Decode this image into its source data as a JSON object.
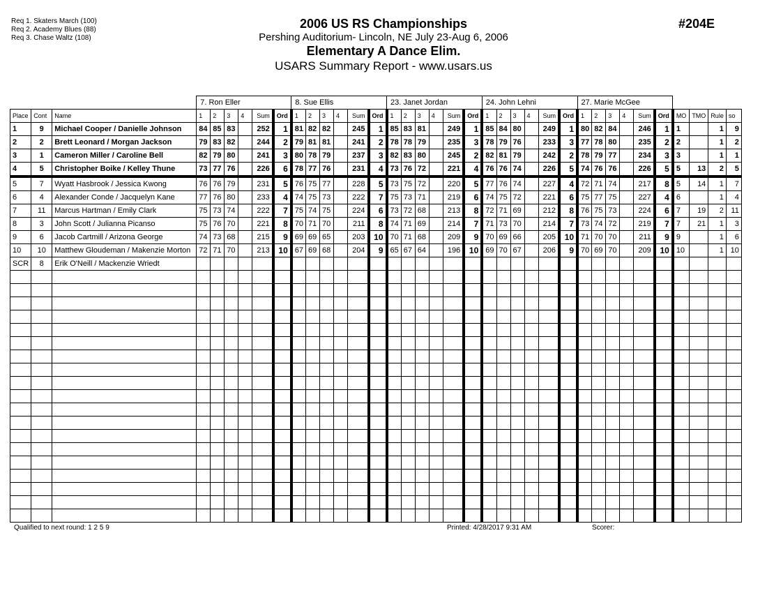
{
  "requirements": [
    "Req  1.  Skaters March (100)",
    "Req  2.  Academy Blues (88)",
    "Req  3.  Chase Waltz (108)"
  ],
  "header": {
    "title": "2006 US RS Championships",
    "venue": "Pershing Auditorium- Lincoln, NE  July 23-Aug 6, 2006",
    "event": "Elementary A Dance Elim.",
    "report": "USARS Summary Report - www.usars.us",
    "event_number": "#204E"
  },
  "judges": [
    "7.  Ron Eller",
    "8.  Sue Ellis",
    "23.  Janet Jordan",
    "24.  John Lehni",
    "27.  Marie McGee"
  ],
  "columns": {
    "place": "Place",
    "cont": "Cont",
    "name": "Name",
    "judge_cols": [
      "1",
      "2",
      "3",
      "4",
      "Sum",
      "Ord"
    ],
    "tail": [
      "MO",
      "TMO",
      "Rule",
      "so"
    ]
  },
  "rows": [
    {
      "place": "1",
      "cont": "9",
      "name": "Michael Cooper / Danielle Johnson",
      "bold": true,
      "scores": [
        [
          "84",
          "85",
          "83",
          "",
          "252",
          "1"
        ],
        [
          "81",
          "82",
          "82",
          "",
          "245",
          "1"
        ],
        [
          "85",
          "83",
          "81",
          "",
          "249",
          "1"
        ],
        [
          "85",
          "84",
          "80",
          "",
          "249",
          "1"
        ],
        [
          "80",
          "82",
          "84",
          "",
          "246",
          "1"
        ]
      ],
      "tail": [
        "1",
        "",
        "1",
        "9"
      ]
    },
    {
      "place": "2",
      "cont": "2",
      "name": "Brett Leonard / Morgan Jackson",
      "bold": true,
      "scores": [
        [
          "79",
          "83",
          "82",
          "",
          "244",
          "2"
        ],
        [
          "79",
          "81",
          "81",
          "",
          "241",
          "2"
        ],
        [
          "78",
          "78",
          "79",
          "",
          "235",
          "3"
        ],
        [
          "78",
          "79",
          "76",
          "",
          "233",
          "3"
        ],
        [
          "77",
          "78",
          "80",
          "",
          "235",
          "2"
        ]
      ],
      "tail": [
        "2",
        "",
        "1",
        "2"
      ]
    },
    {
      "place": "3",
      "cont": "1",
      "name": "Cameron Miller / Caroline Bell",
      "bold": true,
      "scores": [
        [
          "82",
          "79",
          "80",
          "",
          "241",
          "3"
        ],
        [
          "80",
          "78",
          "79",
          "",
          "237",
          "3"
        ],
        [
          "82",
          "83",
          "80",
          "",
          "245",
          "2"
        ],
        [
          "82",
          "81",
          "79",
          "",
          "242",
          "2"
        ],
        [
          "78",
          "79",
          "77",
          "",
          "234",
          "3"
        ]
      ],
      "tail": [
        "3",
        "",
        "1",
        "1"
      ]
    },
    {
      "place": "4",
      "cont": "5",
      "name": "Christopher Boike / Kelley Thune",
      "bold": true,
      "scores": [
        [
          "73",
          "77",
          "76",
          "",
          "226",
          "6"
        ],
        [
          "78",
          "77",
          "76",
          "",
          "231",
          "4"
        ],
        [
          "73",
          "76",
          "72",
          "",
          "221",
          "4"
        ],
        [
          "76",
          "76",
          "74",
          "",
          "226",
          "5"
        ],
        [
          "74",
          "76",
          "76",
          "",
          "226",
          "5"
        ]
      ],
      "tail": [
        "5",
        "13",
        "2",
        "5"
      ]
    },
    {
      "place": "5",
      "cont": "7",
      "name": "Wyatt Hasbrook / Jessica Kwong",
      "scores": [
        [
          "76",
          "76",
          "79",
          "",
          "231",
          "5"
        ],
        [
          "76",
          "75",
          "77",
          "",
          "228",
          "5"
        ],
        [
          "73",
          "75",
          "72",
          "",
          "220",
          "5"
        ],
        [
          "77",
          "76",
          "74",
          "",
          "227",
          "4"
        ],
        [
          "72",
          "71",
          "74",
          "",
          "217",
          "8"
        ]
      ],
      "tail": [
        "5",
        "14",
        "1",
        "7"
      ]
    },
    {
      "place": "6",
      "cont": "4",
      "name": "Alexander Conde / Jacquelyn Kane",
      "scores": [
        [
          "77",
          "76",
          "80",
          "",
          "233",
          "4"
        ],
        [
          "74",
          "75",
          "73",
          "",
          "222",
          "7"
        ],
        [
          "75",
          "73",
          "71",
          "",
          "219",
          "6"
        ],
        [
          "74",
          "75",
          "72",
          "",
          "221",
          "6"
        ],
        [
          "75",
          "77",
          "75",
          "",
          "227",
          "4"
        ]
      ],
      "tail": [
        "6",
        "",
        "1",
        "4"
      ]
    },
    {
      "place": "7",
      "cont": "11",
      "name": "Marcus Hartman / Emily Clark",
      "scores": [
        [
          "75",
          "73",
          "74",
          "",
          "222",
          "7"
        ],
        [
          "75",
          "74",
          "75",
          "",
          "224",
          "6"
        ],
        [
          "73",
          "72",
          "68",
          "",
          "213",
          "8"
        ],
        [
          "72",
          "71",
          "69",
          "",
          "212",
          "8"
        ],
        [
          "76",
          "75",
          "73",
          "",
          "224",
          "6"
        ]
      ],
      "tail": [
        "7",
        "19",
        "2",
        "11"
      ]
    },
    {
      "place": "8",
      "cont": "3",
      "name": "John Scott / Julianna Picanso",
      "scores": [
        [
          "75",
          "76",
          "70",
          "",
          "221",
          "8"
        ],
        [
          "70",
          "71",
          "70",
          "",
          "211",
          "8"
        ],
        [
          "74",
          "71",
          "69",
          "",
          "214",
          "7"
        ],
        [
          "71",
          "73",
          "70",
          "",
          "214",
          "7"
        ],
        [
          "73",
          "74",
          "72",
          "",
          "219",
          "7"
        ]
      ],
      "tail": [
        "7",
        "21",
        "1",
        "3"
      ]
    },
    {
      "place": "9",
      "cont": "6",
      "name": "Jacob Cartmill / Arizona George",
      "scores": [
        [
          "74",
          "73",
          "68",
          "",
          "215",
          "9"
        ],
        [
          "69",
          "69",
          "65",
          "",
          "203",
          "10"
        ],
        [
          "70",
          "71",
          "68",
          "",
          "209",
          "9"
        ],
        [
          "70",
          "69",
          "66",
          "",
          "205",
          "10"
        ],
        [
          "71",
          "70",
          "70",
          "",
          "211",
          "9"
        ]
      ],
      "tail": [
        "9",
        "",
        "1",
        "6"
      ]
    },
    {
      "place": "10",
      "cont": "10",
      "name": "Matthew Gloudeman / Makenzie Morton",
      "scores": [
        [
          "72",
          "71",
          "70",
          "",
          "213",
          "10"
        ],
        [
          "67",
          "69",
          "68",
          "",
          "204",
          "9"
        ],
        [
          "65",
          "67",
          "64",
          "",
          "196",
          "10"
        ],
        [
          "69",
          "70",
          "67",
          "",
          "206",
          "9"
        ],
        [
          "70",
          "69",
          "70",
          "",
          "209",
          "10"
        ]
      ],
      "tail": [
        "10",
        "",
        "1",
        "10"
      ]
    },
    {
      "place": "SCR",
      "cont": "8",
      "name": "Erik O'Neill / Mackenzie Wriedt",
      "scores": [
        [
          "",
          "",
          "",
          "",
          "",
          ""
        ],
        [
          "",
          "",
          "",
          "",
          "",
          ""
        ],
        [
          "",
          "",
          "",
          "",
          "",
          ""
        ],
        [
          "",
          "",
          "",
          "",
          "",
          ""
        ],
        [
          "",
          "",
          "",
          "",
          "",
          ""
        ]
      ],
      "tail": [
        "",
        "",
        "",
        ""
      ]
    }
  ],
  "footer": {
    "qualified": "Qualified to next round:   1 2 5 9",
    "printed": "Printed:  4/28/2017  9:31 AM",
    "scorer": "Scorer:"
  }
}
